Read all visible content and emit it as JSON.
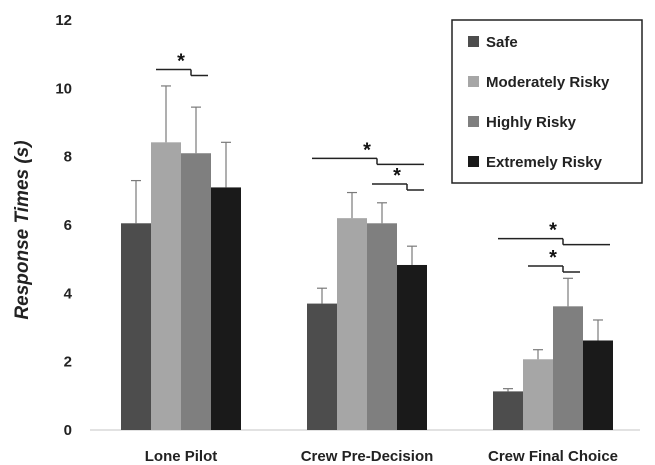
{
  "chart_data": {
    "type": "bar",
    "ylabel": "Response Times (s)",
    "xlabel": "",
    "ylim": [
      0,
      12
    ],
    "yticks": [
      "0",
      "2",
      "4",
      "6",
      "8",
      "10",
      "12"
    ],
    "grid": false,
    "legend_position": "top-right",
    "categories": [
      "Lone Pilot",
      "Crew Pre-Decision",
      "Crew Final Choice"
    ],
    "series": [
      {
        "name": "Safe",
        "color": "#4d4d4d",
        "values": [
          6.05,
          3.7,
          1.13
        ],
        "errors": [
          1.25,
          0.45,
          0.08
        ]
      },
      {
        "name": "Moderately Risky",
        "color": "#a6a6a6",
        "values": [
          8.42,
          6.2,
          2.07
        ],
        "errors": [
          1.65,
          0.75,
          0.28
        ]
      },
      {
        "name": "Highly Risky",
        "color": "#7f7f7f",
        "values": [
          8.1,
          6.05,
          3.62
        ],
        "errors": [
          1.35,
          0.6,
          0.82
        ]
      },
      {
        "name": "Extremely Risky",
        "color": "#1a1a1a",
        "values": [
          7.1,
          4.83,
          2.62
        ],
        "errors": [
          1.32,
          0.55,
          0.6
        ]
      }
    ],
    "significance": [
      {
        "group": 0,
        "from": 1,
        "to": 2,
        "label": "*",
        "y": 10.55
      },
      {
        "group": 1,
        "from": 0,
        "to": 3,
        "label": "*",
        "y": 7.95
      },
      {
        "group": 1,
        "from": 2,
        "to": 3,
        "label": "*",
        "y": 7.2
      },
      {
        "group": 2,
        "from": 0,
        "to": 3,
        "label": "*",
        "y": 5.6
      },
      {
        "group": 2,
        "from": 1,
        "to": 2,
        "label": "*",
        "y": 4.8
      }
    ]
  }
}
